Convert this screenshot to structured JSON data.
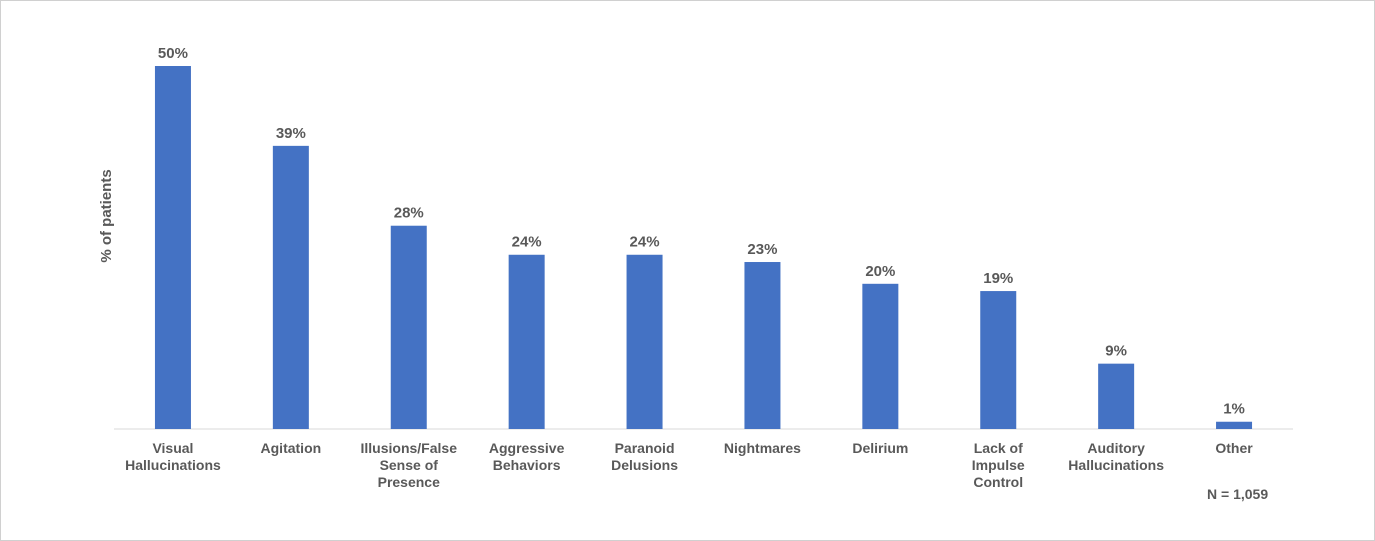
{
  "chart_data": {
    "type": "bar",
    "y_axis_label": "% of patients",
    "categories": [
      "Visual\nHallucinations",
      "Agitation",
      "Illusions/False\nSense of\nPresence",
      "Aggressive\nBehaviors",
      "Paranoid\nDelusions",
      "Nightmares",
      "Delirium",
      "Lack of\nImpulse\nControl",
      "Auditory\nHallucinations",
      "Other"
    ],
    "values": [
      50,
      39,
      28,
      24,
      24,
      23,
      20,
      19,
      9,
      1
    ],
    "value_labels": [
      "50%",
      "39%",
      "28%",
      "24%",
      "24%",
      "23%",
      "20%",
      "19%",
      "9%",
      "1%"
    ],
    "color": "#4472c4",
    "annotation": "N = 1,059"
  }
}
